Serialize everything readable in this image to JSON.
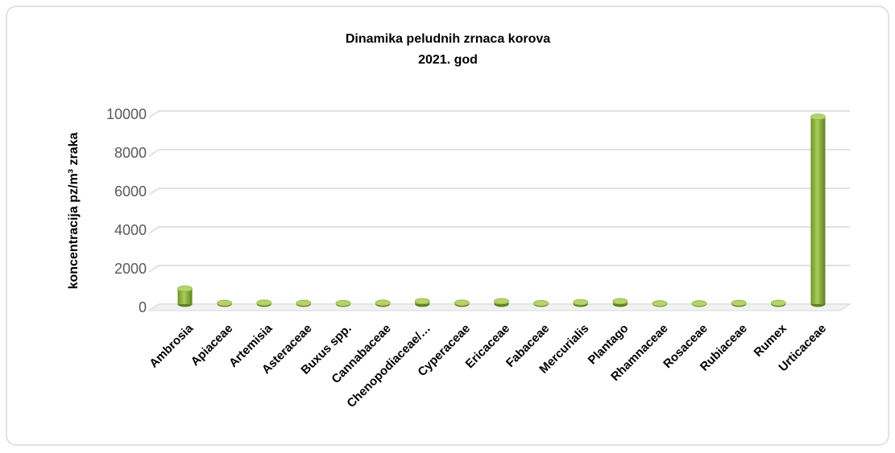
{
  "chart_data": {
    "type": "bar",
    "title": "Dinamika peludnih zrnaca korova",
    "subtitle": "2021. god",
    "y_label": "koncentracija pz/m³ zraka",
    "categories": [
      "Ambrosia",
      "Apiaceae",
      "Artemisia",
      "Asteraceae",
      "Buxus spp.",
      "Cannabaceae",
      "Chenopodiaceae/…",
      "Cyperaceae",
      "Ericaceae",
      "Fabaceae",
      "Mercurialis",
      "Plantago",
      "Rhamnaceae",
      "Rosaceae",
      "Rubiaceae",
      "Rumex",
      "Urticaceae"
    ],
    "values": [
      800,
      60,
      70,
      60,
      50,
      70,
      150,
      70,
      150,
      50,
      100,
      150,
      40,
      40,
      60,
      60,
      9700
    ],
    "color": "#8db43e",
    "ylim": [
      0,
      10000
    ],
    "yticks": [
      0,
      2000,
      4000,
      6000,
      8000,
      10000
    ],
    "grid": true
  }
}
